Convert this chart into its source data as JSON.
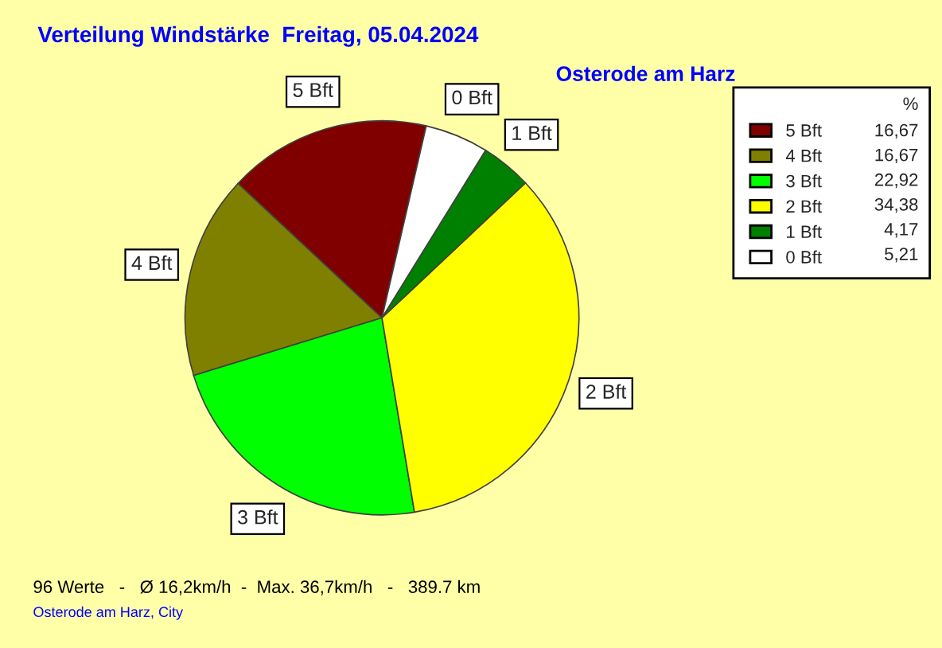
{
  "chart_data": {
    "type": "pie",
    "title": "Verteilung Windstärke  Freitag, 05.04.2024",
    "subtitle": "Osterode am Harz",
    "legend_title": "%",
    "categories": [
      "5 Bft",
      "4 Bft",
      "3 Bft",
      "2 Bft",
      "1 Bft",
      "0 Bft"
    ],
    "values": [
      16.67,
      16.67,
      22.92,
      34.38,
      4.17,
      5.21
    ],
    "value_labels": [
      "16,67",
      "16,67",
      "22,92",
      "34,38",
      "4,17",
      "5,21"
    ],
    "colors": [
      "#800000",
      "#808000",
      "#00ff00",
      "#ffff00",
      "#008000",
      "#ffffff"
    ],
    "legend": "top right",
    "annotations": [
      "96 Werte   -   Ø 16,2km/h  -  Max. 36,7km/h   -   389.7 km",
      "Osterode am Harz, City"
    ]
  }
}
